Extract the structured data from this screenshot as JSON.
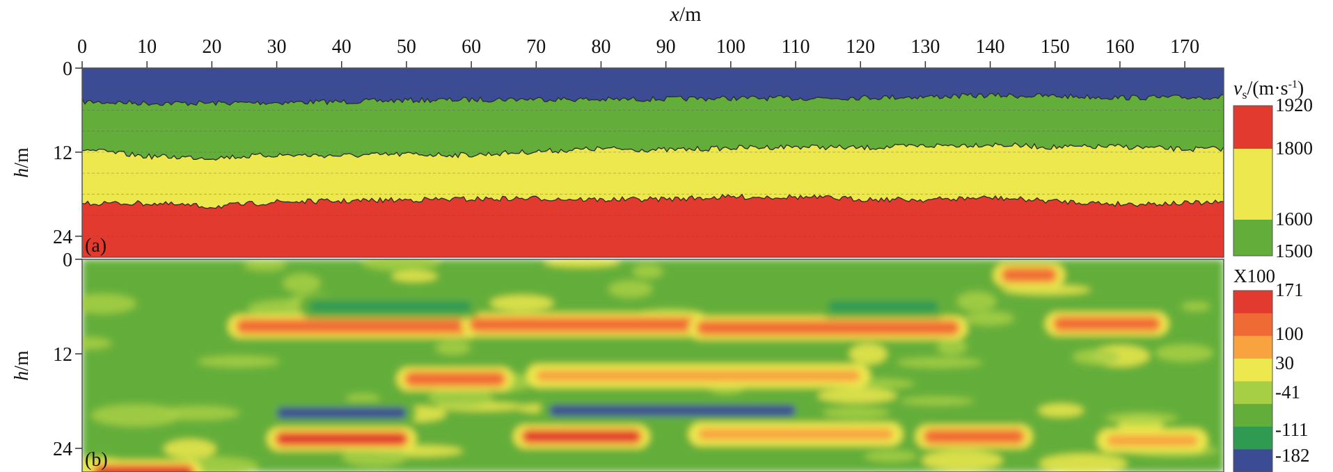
{
  "figure": {
    "x_axis_label": "x/m",
    "x_ticks": [
      0,
      10,
      20,
      30,
      40,
      50,
      60,
      70,
      80,
      90,
      100,
      110,
      120,
      130,
      140,
      150,
      160,
      170
    ],
    "xlim": [
      0,
      176
    ]
  },
  "chart_data": [
    {
      "type": "area",
      "panel_label": "(a)",
      "xlabel": "x/m",
      "ylabel": "h/m",
      "y_ticks": [
        0,
        12,
        24
      ],
      "xlim": [
        0,
        176
      ],
      "ylim": [
        0,
        27
      ],
      "y_inverted": true,
      "colorbar": {
        "title": "vs/(m·s⁻¹)",
        "title_main": "v",
        "title_sub": "s",
        "title_rest": "/(m·s",
        "title_sup": "-1",
        "title_close": ")",
        "tick_labels": [
          "1920",
          "1800",
          "1600",
          "1500"
        ],
        "segments": [
          {
            "from": 1920,
            "to": 1800,
            "color": "#e23a2e"
          },
          {
            "from": 1800,
            "to": 1600,
            "color": "#ece84e"
          },
          {
            "from": 1600,
            "to": 1500,
            "color": "#63ae3b"
          }
        ]
      },
      "layers": [
        {
          "from_depth": 0,
          "to_depth": "boundary_1",
          "color": "#3c4c94"
        },
        {
          "from_depth": "boundary_1",
          "to_depth": "boundary_2",
          "color": "#63ae3b"
        },
        {
          "from_depth": "boundary_2",
          "to_depth": "boundary_3",
          "color": "#ece84e"
        },
        {
          "from_depth": "boundary_3",
          "to_depth": 27,
          "color": "#e23a2e"
        }
      ],
      "boundaries": [
        {
          "name": "boundary_1",
          "x": [
            0,
            10,
            20,
            30,
            40,
            50,
            60,
            70,
            80,
            90,
            100,
            110,
            120,
            130,
            140,
            150,
            160,
            170,
            176
          ],
          "depth": [
            4.8,
            5.0,
            5.0,
            4.9,
            4.8,
            4.6,
            4.5,
            4.4,
            4.5,
            4.4,
            4.3,
            4.3,
            4.2,
            4.1,
            3.9,
            4.0,
            4.2,
            4.2,
            4.1
          ]
        },
        {
          "name": "boundary_2",
          "x": [
            0,
            10,
            20,
            30,
            40,
            50,
            60,
            70,
            80,
            90,
            100,
            110,
            120,
            130,
            140,
            150,
            160,
            170,
            176
          ],
          "depth": [
            11.6,
            12.6,
            12.8,
            12.4,
            12.5,
            12.3,
            12.4,
            11.9,
            11.5,
            11.7,
            11.4,
            11.2,
            11.4,
            11.1,
            10.9,
            11.3,
            11.2,
            11.6,
            11.5
          ]
        },
        {
          "name": "boundary_3",
          "x": [
            0,
            10,
            20,
            30,
            40,
            50,
            60,
            70,
            80,
            90,
            100,
            110,
            120,
            130,
            140,
            150,
            160,
            170,
            176
          ],
          "depth": [
            19.3,
            19.3,
            19.8,
            19.1,
            19.0,
            18.8,
            18.7,
            18.6,
            18.8,
            18.7,
            18.4,
            18.4,
            18.7,
            18.8,
            18.5,
            19.0,
            19.4,
            19.3,
            19.2
          ]
        }
      ]
    },
    {
      "type": "heatmap",
      "panel_label": "(b)",
      "xlabel": "x/m",
      "ylabel": "h/m",
      "y_ticks": [
        0,
        12,
        24
      ],
      "xlim": [
        0,
        176
      ],
      "ylim": [
        0,
        27
      ],
      "y_inverted": true,
      "colorbar": {
        "title": "X100",
        "tick_labels": [
          "171",
          "100",
          "30",
          "-41",
          "-111",
          "-182"
        ],
        "colors": [
          "#e23a2e",
          "#f06a35",
          "#f8a33f",
          "#ece84e",
          "#a7cf45",
          "#63ae3b",
          "#2f9a52",
          "#3c4c94"
        ]
      },
      "background_value": -41,
      "anomalies": [
        {
          "x": [
            24,
            60
          ],
          "depth": 8.5,
          "value": 140
        },
        {
          "x": [
            60,
            95
          ],
          "depth": 8.3,
          "value": 120
        },
        {
          "x": [
            95,
            135
          ],
          "depth": 8.7,
          "value": 130
        },
        {
          "x": [
            150,
            166
          ],
          "depth": 8.2,
          "value": 110
        },
        {
          "x": [
            50,
            65
          ],
          "depth": 15.2,
          "value": 130
        },
        {
          "x": [
            70,
            120
          ],
          "depth": 14.8,
          "value": 60
        },
        {
          "x": [
            30,
            50
          ],
          "depth": 19.5,
          "value": -182
        },
        {
          "x": [
            72,
            110
          ],
          "depth": 19.2,
          "value": -182
        },
        {
          "x": [
            30,
            50
          ],
          "depth": 22.8,
          "value": 150
        },
        {
          "x": [
            68,
            86
          ],
          "depth": 22.5,
          "value": 171
        },
        {
          "x": [
            95,
            125
          ],
          "depth": 22.2,
          "value": 60
        },
        {
          "x": [
            130,
            145
          ],
          "depth": 22.5,
          "value": 120
        },
        {
          "x": [
            158,
            172
          ],
          "depth": 23.0,
          "value": 90
        },
        {
          "x": [
            142,
            150
          ],
          "depth": 2.0,
          "value": 120
        },
        {
          "x": [
            2,
            17
          ],
          "depth": 27.0,
          "value": 150
        },
        {
          "x": [
            35,
            60
          ],
          "depth": 6.0,
          "value": -111
        },
        {
          "x": [
            115,
            132
          ],
          "depth": 6.0,
          "value": -111
        }
      ]
    }
  ]
}
